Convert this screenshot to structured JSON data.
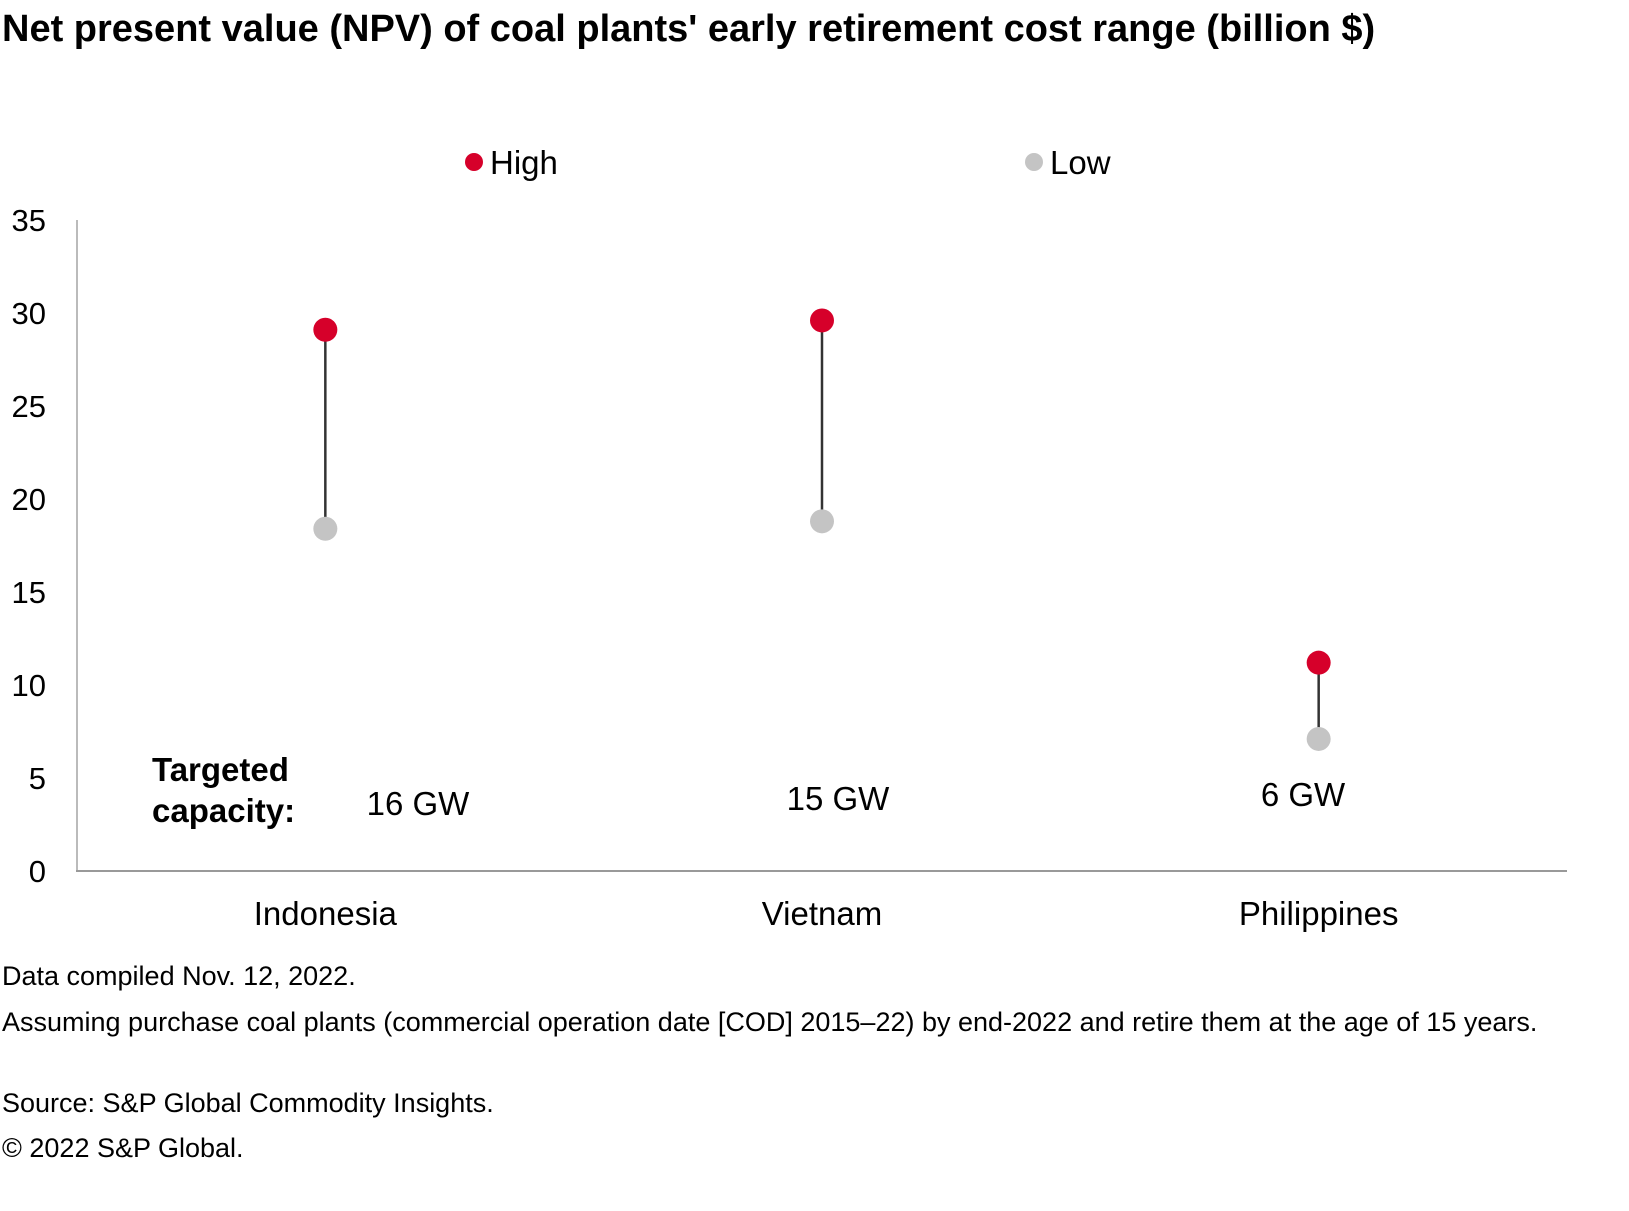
{
  "chart_data": {
    "type": "dumbbell",
    "title": "Net present value (NPV) of coal plants' early retirement cost range (billion $)",
    "categories": [
      "Indonesia",
      "Vietnam",
      "Philippines"
    ],
    "series": [
      {
        "name": "High",
        "color": "#D6002A",
        "values": [
          29.1,
          29.6,
          11.2
        ]
      },
      {
        "name": "Low",
        "color": "#C4C4C4",
        "values": [
          18.4,
          18.8,
          7.1
        ]
      }
    ],
    "ylim": [
      0,
      35
    ],
    "yticks": [
      0,
      5,
      10,
      15,
      20,
      25,
      30,
      35
    ],
    "grid": false,
    "legend": "top",
    "annotation_label": "Targeted capacity:",
    "capacity_labels": [
      "16 GW",
      "15 GW",
      "6 GW"
    ]
  },
  "notes": [
    "Data compiled Nov. 12, 2022.",
    "Assuming purchase coal plants (commercial operation date [COD] 2015–22) by end-2022 and retire them at the age of 15 years.",
    "Source: S&P Global Commodity Insights.",
    "© 2022 S&P Global."
  ]
}
